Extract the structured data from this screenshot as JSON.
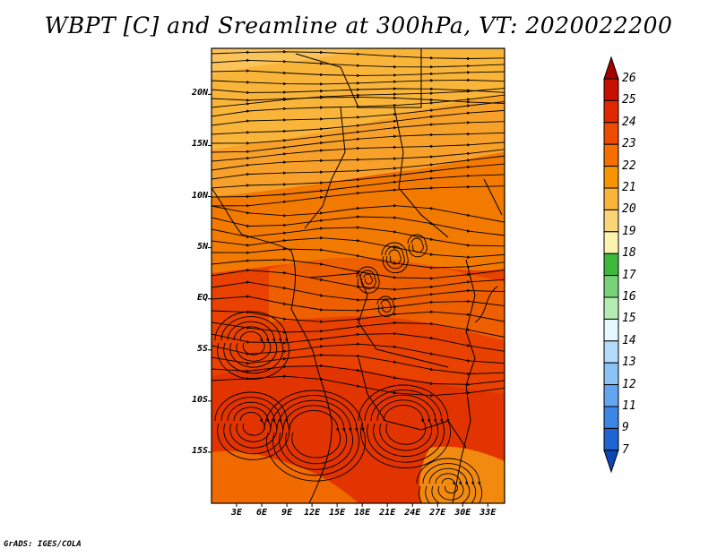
{
  "title": "WBPT [C] and Sreamline at 300hPa, VT: 2020022200",
  "credit": "GrADS: IGES/COLA",
  "map": {
    "lat_labels": [
      "20N",
      "15N",
      "10N",
      "5N",
      "EQ",
      "5S",
      "10S",
      "15S"
    ],
    "lon_labels": [
      "3E",
      "6E",
      "9E",
      "12E",
      "15E",
      "18E",
      "21E",
      "24E",
      "27E",
      "30E",
      "33E"
    ],
    "lat_range": [
      -20,
      24.5
    ],
    "lon_range": [
      0,
      35
    ]
  },
  "colorbar": {
    "labels": [
      "26",
      "25",
      "24",
      "23",
      "22",
      "21",
      "20",
      "19",
      "18",
      "17",
      "16",
      "15",
      "14",
      "13",
      "12",
      "11",
      "9",
      "7"
    ],
    "colors": [
      "#a50000",
      "#c81000",
      "#e02800",
      "#ee4a00",
      "#f56e00",
      "#f79500",
      "#f9b43a",
      "#fbd676",
      "#fcf3b0",
      "#3cb83c",
      "#78d278",
      "#b4ecb4",
      "#e6f8ff",
      "#b4dcfa",
      "#8cc3f5",
      "#64a5f0",
      "#3c87e6",
      "#1e64d2",
      "#0a46b4"
    ]
  },
  "field": {
    "legend_icon": "colorbar-triangles",
    "dominant_colors": [
      "#f9b43a",
      "#f79500",
      "#f56e00",
      "#ee4a00",
      "#e02800"
    ]
  }
}
